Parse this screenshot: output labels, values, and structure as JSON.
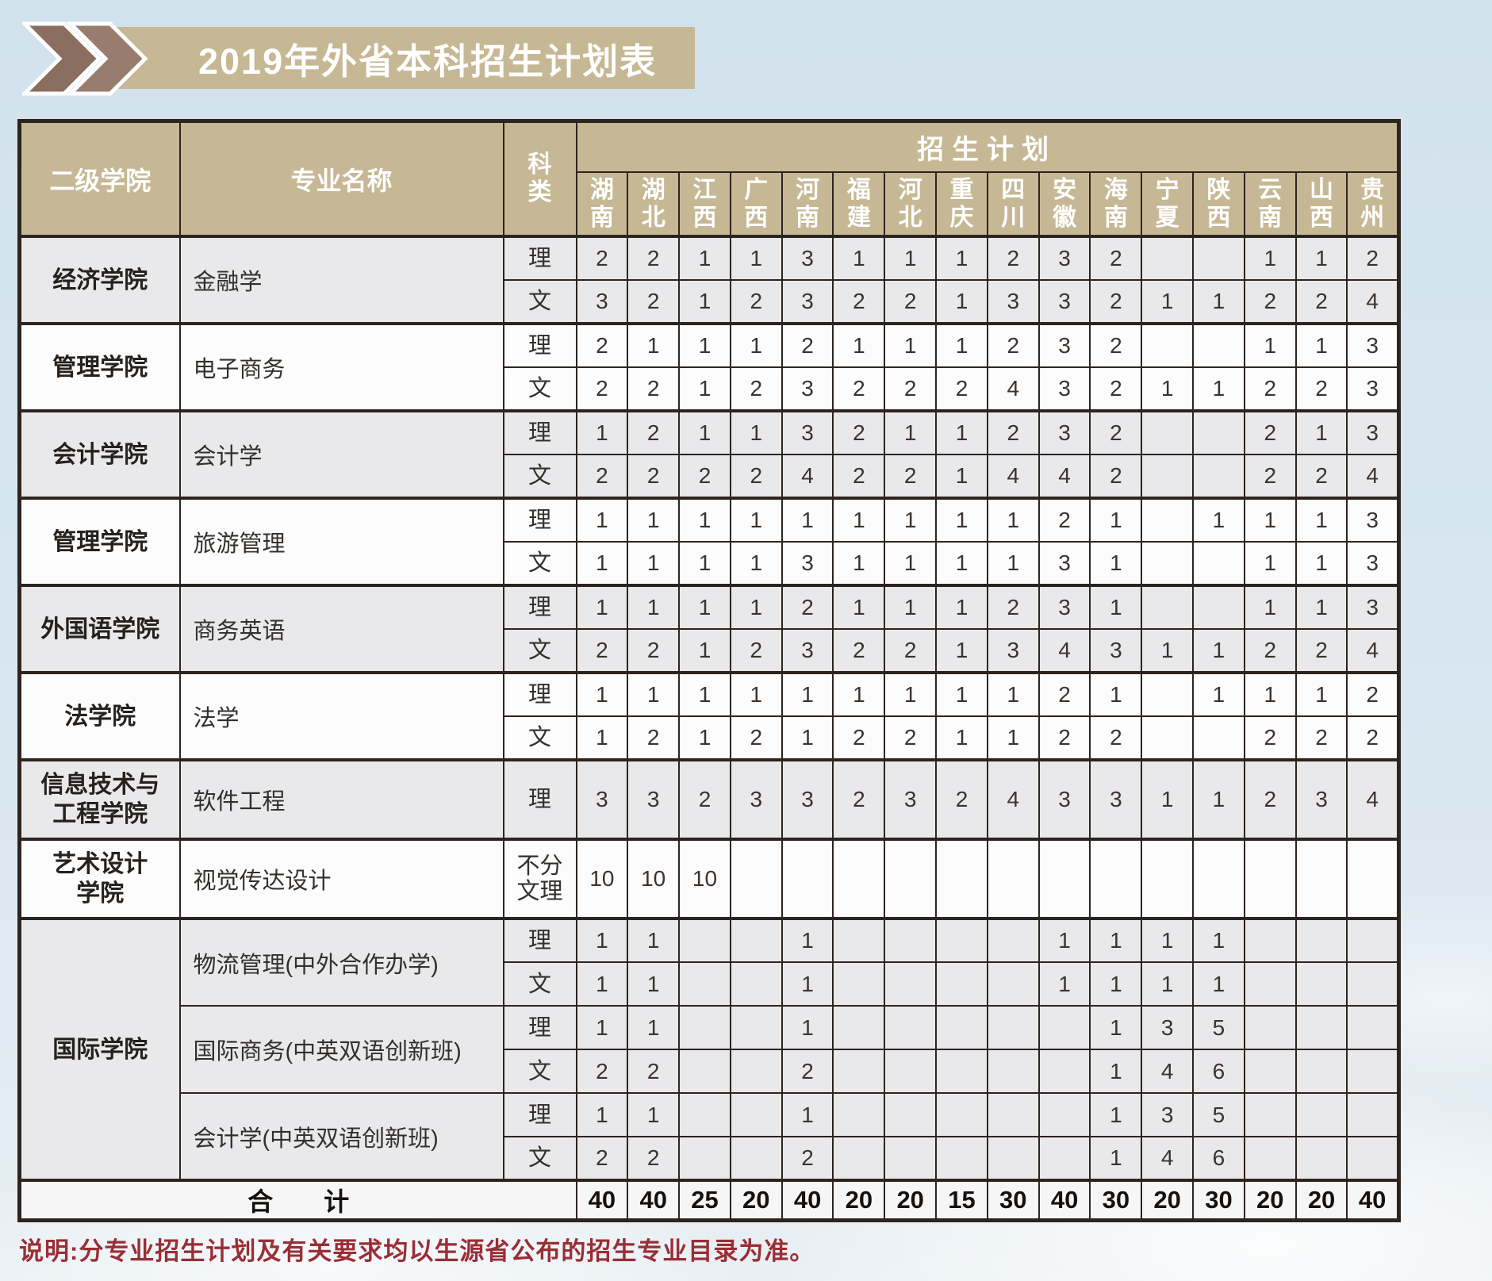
{
  "title": "2019年外省本科招生计划表",
  "note": "说明:分专业招生计划及有关要求均以生源省公布的招生专业目录为准。",
  "colors": {
    "banner_tan": "#c6b894",
    "chevron_dark": "#8a6e60",
    "chevron_light": "#987d6f",
    "border": "#2e241e",
    "row_gray": "#e9e9eb",
    "note_red": "#9a2e35",
    "page_blue": "#d7e5ef"
  },
  "table": {
    "headers": {
      "college": "二级学院",
      "major": "专业名称",
      "category": "科\n类",
      "plan": "招生计划"
    },
    "provinces": [
      "湖南",
      "湖北",
      "江西",
      "广西",
      "河南",
      "福建",
      "河北",
      "重庆",
      "四川",
      "安徽",
      "海南",
      "宁夏",
      "陕西",
      "云南",
      "山西",
      "贵州"
    ],
    "groups": [
      {
        "college": "经济学院",
        "shade": "gray",
        "majors": [
          {
            "name": "金融学",
            "rows": [
              {
                "cat": "理",
                "values": [
                  2,
                  2,
                  1,
                  1,
                  3,
                  1,
                  1,
                  1,
                  2,
                  3,
                  2,
                  "",
                  "",
                  1,
                  1,
                  2
                ]
              },
              {
                "cat": "文",
                "values": [
                  3,
                  2,
                  1,
                  2,
                  3,
                  2,
                  2,
                  1,
                  3,
                  3,
                  2,
                  1,
                  1,
                  2,
                  2,
                  4
                ]
              }
            ]
          }
        ]
      },
      {
        "college": "管理学院",
        "shade": "white",
        "majors": [
          {
            "name": "电子商务",
            "rows": [
              {
                "cat": "理",
                "values": [
                  2,
                  1,
                  1,
                  1,
                  2,
                  1,
                  1,
                  1,
                  2,
                  3,
                  2,
                  "",
                  "",
                  1,
                  1,
                  3
                ]
              },
              {
                "cat": "文",
                "values": [
                  2,
                  2,
                  1,
                  2,
                  3,
                  2,
                  2,
                  2,
                  4,
                  3,
                  2,
                  1,
                  1,
                  2,
                  2,
                  3
                ]
              }
            ]
          }
        ]
      },
      {
        "college": "会计学院",
        "shade": "gray",
        "majors": [
          {
            "name": "会计学",
            "rows": [
              {
                "cat": "理",
                "values": [
                  1,
                  2,
                  1,
                  1,
                  3,
                  2,
                  1,
                  1,
                  2,
                  3,
                  2,
                  "",
                  "",
                  2,
                  1,
                  3
                ]
              },
              {
                "cat": "文",
                "values": [
                  2,
                  2,
                  2,
                  2,
                  4,
                  2,
                  2,
                  1,
                  4,
                  4,
                  2,
                  "",
                  "",
                  2,
                  2,
                  4
                ]
              }
            ]
          }
        ]
      },
      {
        "college": "管理学院",
        "shade": "white",
        "majors": [
          {
            "name": "旅游管理",
            "rows": [
              {
                "cat": "理",
                "values": [
                  1,
                  1,
                  1,
                  1,
                  1,
                  1,
                  1,
                  1,
                  1,
                  2,
                  1,
                  "",
                  1,
                  1,
                  1,
                  3
                ]
              },
              {
                "cat": "文",
                "values": [
                  1,
                  1,
                  1,
                  1,
                  3,
                  1,
                  1,
                  1,
                  1,
                  3,
                  1,
                  "",
                  "",
                  1,
                  1,
                  3
                ]
              }
            ]
          }
        ]
      },
      {
        "college": "外国语学院",
        "shade": "gray",
        "majors": [
          {
            "name": "商务英语",
            "rows": [
              {
                "cat": "理",
                "values": [
                  1,
                  1,
                  1,
                  1,
                  2,
                  1,
                  1,
                  1,
                  2,
                  3,
                  1,
                  "",
                  "",
                  1,
                  1,
                  3
                ]
              },
              {
                "cat": "文",
                "values": [
                  2,
                  2,
                  1,
                  2,
                  3,
                  2,
                  2,
                  1,
                  3,
                  4,
                  3,
                  1,
                  1,
                  2,
                  2,
                  4
                ]
              }
            ]
          }
        ]
      },
      {
        "college": "法学院",
        "shade": "white",
        "majors": [
          {
            "name": "法学",
            "rows": [
              {
                "cat": "理",
                "values": [
                  1,
                  1,
                  1,
                  1,
                  1,
                  1,
                  1,
                  1,
                  1,
                  2,
                  1,
                  "",
                  1,
                  1,
                  1,
                  2
                ]
              },
              {
                "cat": "文",
                "values": [
                  1,
                  2,
                  1,
                  2,
                  1,
                  2,
                  2,
                  1,
                  1,
                  2,
                  2,
                  "",
                  "",
                  2,
                  2,
                  2
                ]
              }
            ]
          }
        ]
      },
      {
        "college": "信息技术与\n工程学院",
        "shade": "gray",
        "majors": [
          {
            "name": "软件工程",
            "rows": [
              {
                "cat": "理",
                "values": [
                  3,
                  3,
                  2,
                  3,
                  3,
                  2,
                  3,
                  2,
                  4,
                  3,
                  3,
                  1,
                  1,
                  2,
                  3,
                  4
                ]
              }
            ]
          }
        ]
      },
      {
        "college": "艺术设计\n学院",
        "shade": "white",
        "majors": [
          {
            "name": "视觉传达设计",
            "rows": [
              {
                "cat": "不分\n文理",
                "values": [
                  10,
                  10,
                  10,
                  "",
                  "",
                  "",
                  "",
                  "",
                  "",
                  "",
                  "",
                  "",
                  "",
                  "",
                  "",
                  ""
                ]
              }
            ]
          }
        ]
      },
      {
        "college": "国际学院",
        "shade": "gray",
        "majors": [
          {
            "name": "物流管理(中外合作办学)",
            "rows": [
              {
                "cat": "理",
                "values": [
                  1,
                  1,
                  "",
                  "",
                  1,
                  "",
                  "",
                  "",
                  "",
                  1,
                  1,
                  1,
                  1,
                  "",
                  "",
                  ""
                ]
              },
              {
                "cat": "文",
                "values": [
                  1,
                  1,
                  "",
                  "",
                  1,
                  "",
                  "",
                  "",
                  "",
                  1,
                  1,
                  1,
                  1,
                  "",
                  "",
                  ""
                ]
              }
            ]
          },
          {
            "name": "国际商务(中英双语创新班)",
            "rows": [
              {
                "cat": "理",
                "values": [
                  1,
                  1,
                  "",
                  "",
                  1,
                  "",
                  "",
                  "",
                  "",
                  "",
                  1,
                  3,
                  5,
                  "",
                  "",
                  ""
                ]
              },
              {
                "cat": "文",
                "values": [
                  2,
                  2,
                  "",
                  "",
                  2,
                  "",
                  "",
                  "",
                  "",
                  "",
                  1,
                  4,
                  6,
                  "",
                  "",
                  ""
                ]
              }
            ]
          },
          {
            "name": "会计学(中英双语创新班)",
            "rows": [
              {
                "cat": "理",
                "values": [
                  1,
                  1,
                  "",
                  "",
                  1,
                  "",
                  "",
                  "",
                  "",
                  "",
                  1,
                  3,
                  5,
                  "",
                  "",
                  ""
                ]
              },
              {
                "cat": "文",
                "values": [
                  2,
                  2,
                  "",
                  "",
                  2,
                  "",
                  "",
                  "",
                  "",
                  "",
                  1,
                  4,
                  6,
                  "",
                  "",
                  ""
                ]
              }
            ]
          }
        ]
      }
    ],
    "total": {
      "label": "合　　计",
      "values": [
        40,
        40,
        25,
        20,
        40,
        20,
        20,
        15,
        30,
        40,
        30,
        20,
        30,
        20,
        20,
        40
      ]
    }
  }
}
